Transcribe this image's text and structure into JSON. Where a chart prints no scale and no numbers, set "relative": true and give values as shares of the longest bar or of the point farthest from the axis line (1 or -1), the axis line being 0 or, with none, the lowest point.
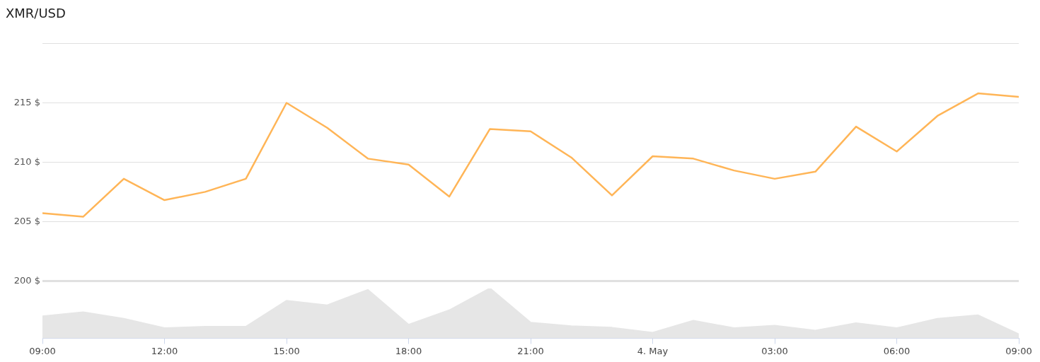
{
  "chart_data": [
    {
      "type": "line",
      "title": "XMR/USD",
      "x": [
        "--05-03T09:00",
        "--05-03T10:00",
        "--05-03T11:00",
        "--05-03T12:00",
        "--05-03T13:00",
        "--05-03T14:00",
        "--05-03T15:00",
        "--05-03T16:00",
        "--05-03T17:00",
        "--05-03T18:00",
        "--05-03T19:00",
        "--05-03T20:00",
        "--05-03T21:00",
        "--05-03T22:00",
        "--05-03T23:00",
        "--05-04T00:00",
        "--05-04T01:00",
        "--05-04T02:00",
        "--05-04T03:00",
        "--05-04T04:00",
        "--05-04T05:00",
        "--05-04T06:00",
        "--05-04T07:00",
        "--05-04T08:00",
        "--05-04T09:00"
      ],
      "series": [
        {
          "color": "#ffb557",
          "values": [
            205.7,
            205.4,
            208.6,
            206.8,
            207.5,
            208.6,
            215.0,
            212.9,
            210.3,
            209.8,
            207.1,
            212.8,
            212.6,
            210.4,
            207.2,
            210.5,
            210.3,
            209.3,
            208.6,
            209.2,
            213.0,
            210.9,
            213.9,
            215.8,
            215.5
          ]
        }
      ],
      "xlim": [
        "--05-03T09:00",
        "--05-04T09:00"
      ],
      "ylim": [
        200,
        220
      ],
      "yticks": [
        {
          "value": 200,
          "label": "200 $"
        },
        {
          "value": 205,
          "label": "205 $"
        },
        {
          "value": 210,
          "label": "210 $"
        },
        {
          "value": 215,
          "label": "215 $"
        },
        {
          "value": 220,
          "label": null
        }
      ],
      "grid": "y",
      "tick_labels": "y",
      "marker": "none"
    },
    {
      "type": "area",
      "relative": true,
      "x": [
        "--05-03T09:00",
        "--05-03T10:00",
        "--05-03T11:00",
        "--05-03T12:00",
        "--05-03T13:00",
        "--05-03T14:00",
        "--05-03T15:00",
        "--05-03T16:00",
        "--05-03T17:00",
        "--05-03T18:00",
        "--05-03T19:00",
        "--05-03T20:00",
        "--05-03T21:00",
        "--05-03T22:00",
        "--05-03T23:00",
        "--05-04T00:00",
        "--05-04T01:00",
        "--05-04T02:00",
        "--05-04T03:00",
        "--05-04T04:00",
        "--05-04T05:00",
        "--05-04T06:00",
        "--05-04T07:00",
        "--05-04T08:00",
        "--05-04T09:00"
      ],
      "series": [
        {
          "color": "#e6e6e6",
          "values": [
            0.44,
            0.52,
            0.39,
            0.2,
            0.23,
            0.23,
            0.75,
            0.66,
            0.97,
            0.27,
            0.56,
            1,
            0.31,
            0.24,
            0.21,
            0.11,
            0.35,
            0.2,
            0.25,
            0.15,
            0.3,
            0.2,
            0.39,
            0.46,
            0.08
          ]
        }
      ],
      "xlim": [
        "--05-03T09:00",
        "--05-04T09:00"
      ],
      "xticks": [
        {
          "value": "--05-03T09:00",
          "label": "09:00"
        },
        {
          "value": "--05-03T12:00",
          "label": "12:00"
        },
        {
          "value": "--05-03T15:00",
          "label": "15:00"
        },
        {
          "value": "--05-03T18:00",
          "label": "18:00"
        },
        {
          "value": "--05-03T21:00",
          "label": "21:00"
        },
        {
          "value": "--05-04T00:00",
          "label": "4. May"
        },
        {
          "value": "--05-04T03:00",
          "label": "03:00"
        },
        {
          "value": "--05-04T06:00",
          "label": "06:00"
        },
        {
          "value": "--05-04T09:00",
          "label": "09:00"
        }
      ],
      "grid": false,
      "tick_labels": "x",
      "marker": "none"
    }
  ]
}
